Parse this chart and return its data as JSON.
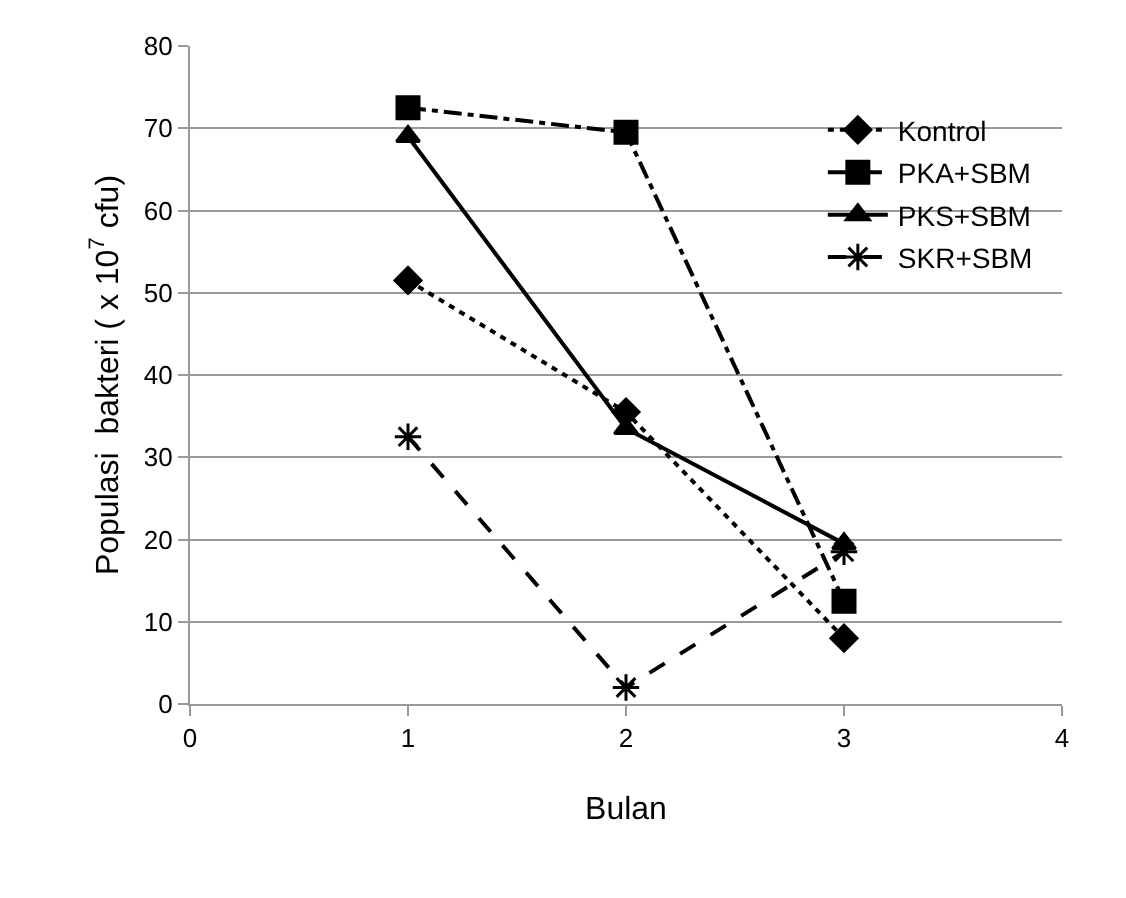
{
  "chart_data": {
    "type": "line",
    "xlabel": "Bulan",
    "ylabel": "Populasi  bakteri ( x 10$^{7}$ cfu)",
    "x": [
      1,
      2,
      3
    ],
    "xlim": [
      0,
      4
    ],
    "xticks": [
      0,
      1,
      2,
      3,
      4
    ],
    "ylim": [
      0,
      80
    ],
    "yticks": [
      0,
      10,
      20,
      30,
      40,
      50,
      60,
      70,
      80
    ],
    "grid": "y",
    "legend": "top right",
    "series": [
      {
        "name": "Kontrol",
        "color": "#000000",
        "values": [
          51.5,
          35.5,
          8
        ],
        "marker": "diamond",
        "line_style": "dotted"
      },
      {
        "name": "PKA+SBM",
        "color": "#000000",
        "values": [
          72.5,
          69.5,
          12.5
        ],
        "marker": "square",
        "line_style": "dashdot"
      },
      {
        "name": "PKS+SBM",
        "color": "#000000",
        "values": [
          69,
          33.5,
          19.5
        ],
        "marker": "triangle",
        "line_style": "solid"
      },
      {
        "name": "SKR+SBM",
        "color": "#000000",
        "values": [
          32.5,
          2,
          18.5
        ],
        "marker": "cross",
        "line_style": "dashed"
      }
    ]
  }
}
